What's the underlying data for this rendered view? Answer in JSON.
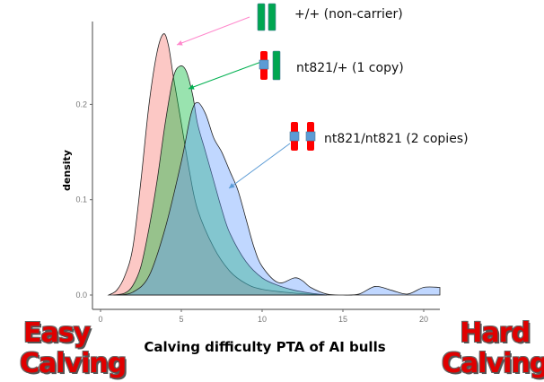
{
  "chart_data": {
    "type": "area",
    "title": "",
    "xlabel": "Calving difficulty PTA of AI bulls",
    "ylabel": "density",
    "xlim": [
      -0.5,
      21
    ],
    "ylim": [
      -0.015,
      0.285
    ],
    "xticks": [
      "0",
      "5",
      "10",
      "15",
      "20"
    ],
    "xtick_values": [
      0,
      5,
      10,
      15,
      20
    ],
    "yticks": [
      "0.0",
      "0.1",
      "0.2"
    ],
    "ytick_values": [
      0,
      0.1,
      0.2
    ],
    "grid": false,
    "series": [
      {
        "name": "+/+ (non-carrier)",
        "color": "#f8766d",
        "x": [
          0.5,
          1,
          1.5,
          2,
          2.5,
          3,
          3.5,
          3.9,
          4.2,
          4.5,
          5,
          5.5,
          6,
          7,
          8,
          9,
          10,
          12,
          14
        ],
        "y": [
          0,
          0.005,
          0.02,
          0.05,
          0.12,
          0.2,
          0.255,
          0.274,
          0.262,
          0.23,
          0.18,
          0.13,
          0.09,
          0.05,
          0.025,
          0.012,
          0.006,
          0.002,
          0
        ]
      },
      {
        "name": "nt821/+ (1 copy)",
        "color": "#00ba38",
        "x": [
          0.8,
          1.5,
          2,
          2.5,
          3,
          3.5,
          4,
          4.5,
          4.9,
          5.3,
          5.7,
          6,
          6.5,
          7,
          7.5,
          8,
          9,
          10,
          11,
          12,
          13,
          14
        ],
        "y": [
          0,
          0.002,
          0.01,
          0.03,
          0.07,
          0.12,
          0.18,
          0.228,
          0.24,
          0.235,
          0.21,
          0.18,
          0.15,
          0.12,
          0.09,
          0.065,
          0.035,
          0.018,
          0.01,
          0.005,
          0.002,
          0
        ]
      },
      {
        "name": "nt821/nt821 (2 copies)",
        "color": "#619cff",
        "x": [
          1,
          2,
          3,
          4,
          5,
          5.6,
          6,
          6.5,
          7,
          7.5,
          8,
          8.5,
          9,
          9.5,
          10,
          11,
          12,
          12.5,
          13,
          14,
          15,
          16,
          17,
          18,
          19,
          20,
          21
        ],
        "y": [
          0,
          0.003,
          0.02,
          0.07,
          0.14,
          0.19,
          0.202,
          0.19,
          0.165,
          0.15,
          0.13,
          0.11,
          0.08,
          0.05,
          0.03,
          0.013,
          0.018,
          0.015,
          0.008,
          0.001,
          0,
          0.001,
          0.009,
          0.005,
          0.001,
          0.008,
          0.008
        ]
      }
    ]
  },
  "legend": [
    {
      "label": "+/+ (non-carrier)"
    },
    {
      "label": "nt821/+ (1 copy)"
    },
    {
      "label": "nt821/nt821 (2 copies)"
    }
  ],
  "side_labels": {
    "left": [
      "Easy",
      "Calving"
    ],
    "right": [
      "Hard",
      "Calving"
    ]
  }
}
